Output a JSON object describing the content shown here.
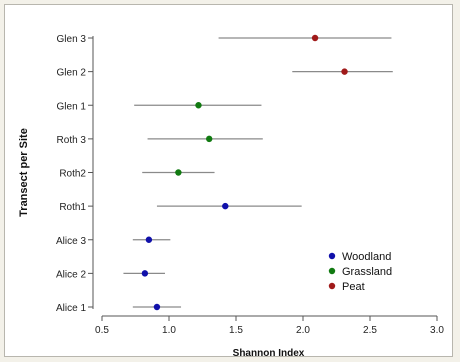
{
  "chart_data": {
    "type": "scatter",
    "subtype": "dot-whisker",
    "title": "",
    "xlabel": "Shannon Index",
    "ylabel": "Transect per Site",
    "xlim": [
      0.5,
      3.0
    ],
    "xticks": [
      "0.5",
      "1.0",
      "1.5",
      "2.0",
      "2.5",
      "3.0"
    ],
    "grid": false,
    "legend_position": "bottom-right",
    "series": [
      {
        "name": "Woodland",
        "color": "#1010aa"
      },
      {
        "name": "Grassland",
        "color": "#117a11"
      },
      {
        "name": "Peat",
        "color": "#a01a1a"
      }
    ],
    "rows": [
      {
        "label": "Glen 3",
        "series": "Peat",
        "value": 2.09,
        "low": 1.37,
        "high": 2.66
      },
      {
        "label": "Glen 2",
        "series": "Peat",
        "value": 2.31,
        "low": 1.92,
        "high": 2.67
      },
      {
        "label": "Glen 1",
        "series": "Grassland",
        "value": 1.22,
        "low": 0.74,
        "high": 1.69
      },
      {
        "label": "Roth 3",
        "series": "Grassland",
        "value": 1.3,
        "low": 0.84,
        "high": 1.7
      },
      {
        "label": "Roth2",
        "series": "Grassland",
        "value": 1.07,
        "low": 0.8,
        "high": 1.34
      },
      {
        "label": "Roth1",
        "series": "Woodland",
        "value": 1.42,
        "low": 0.91,
        "high": 1.99
      },
      {
        "label": "Alice 3",
        "series": "Woodland",
        "value": 0.85,
        "low": 0.73,
        "high": 1.01
      },
      {
        "label": "Alice 2",
        "series": "Woodland",
        "value": 0.82,
        "low": 0.66,
        "high": 0.97
      },
      {
        "label": "Alice 1",
        "series": "Woodland",
        "value": 0.91,
        "low": 0.73,
        "high": 1.09
      }
    ]
  }
}
